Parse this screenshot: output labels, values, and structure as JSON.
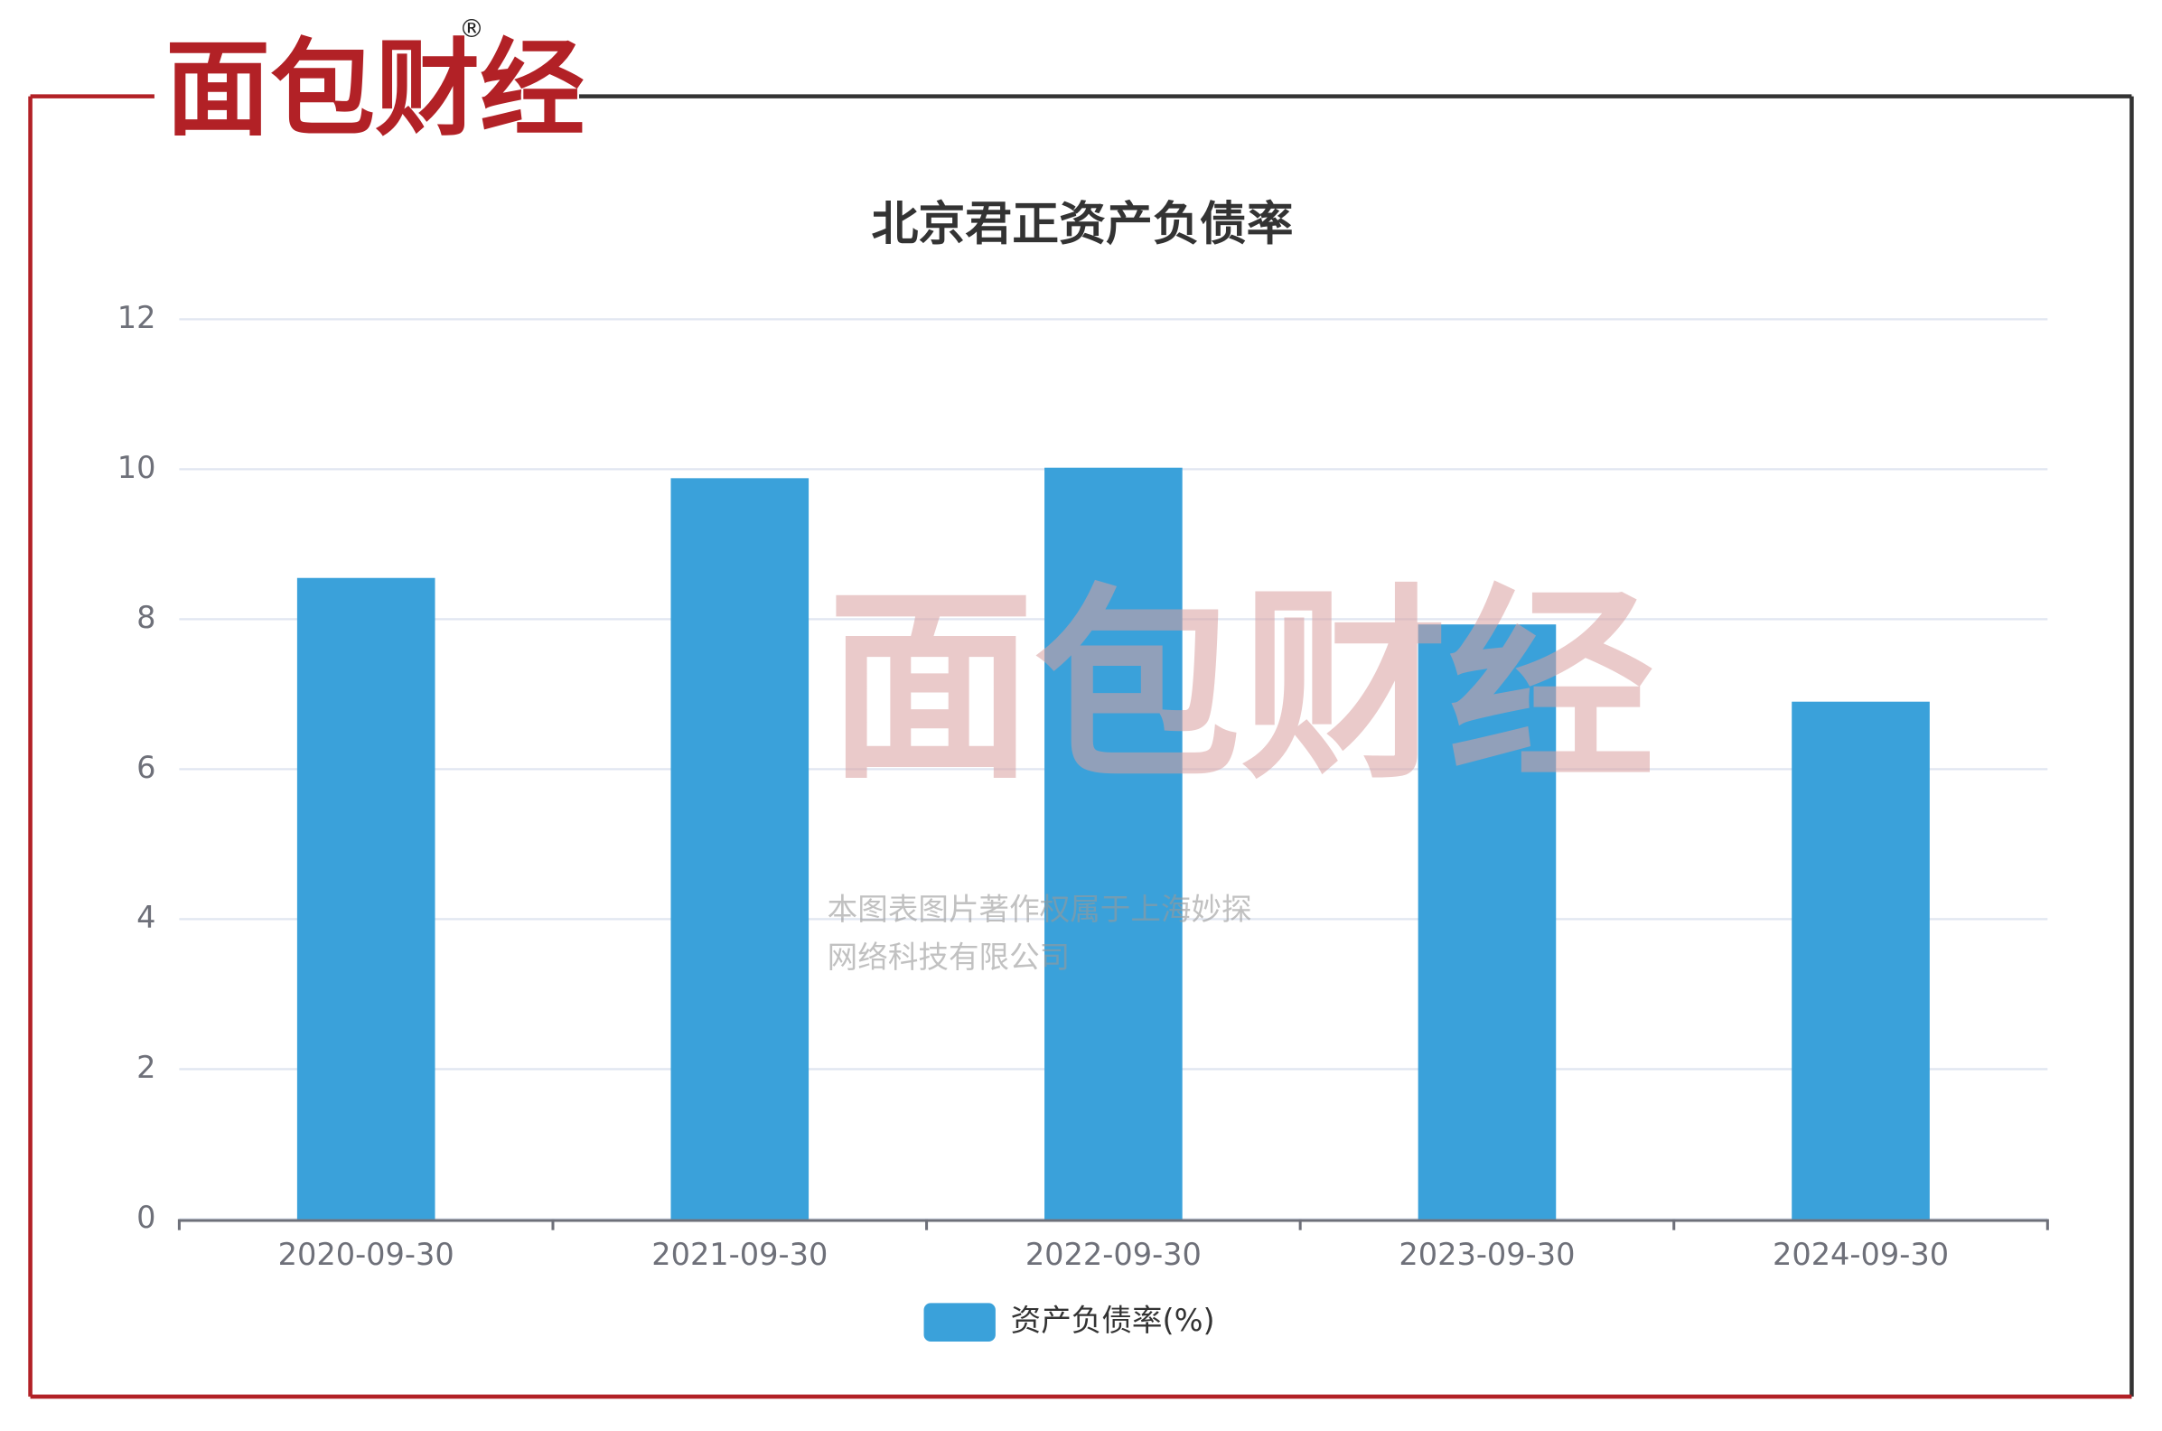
{
  "brand": {
    "logo": "面包财经",
    "registered": "®"
  },
  "watermark": {
    "logo": "面包财经",
    "lines": [
      "本图表图片著作权属于上海妙探",
      "网络科技有限公司"
    ]
  },
  "chart_data": {
    "type": "bar",
    "title": "北京君正资产负债率",
    "categories": [
      "2020-09-30",
      "2021-09-30",
      "2022-09-30",
      "2023-09-30",
      "2024-09-30"
    ],
    "series": [
      {
        "name": "资产负债率(%)",
        "color": "#3aa1da",
        "values": [
          8.55,
          9.88,
          10.02,
          7.93,
          6.9
        ]
      }
    ],
    "ylim": [
      0,
      12
    ],
    "yticks": [
      0,
      2,
      4,
      6,
      8,
      10,
      12
    ],
    "grid": true,
    "legend": "bottom"
  }
}
